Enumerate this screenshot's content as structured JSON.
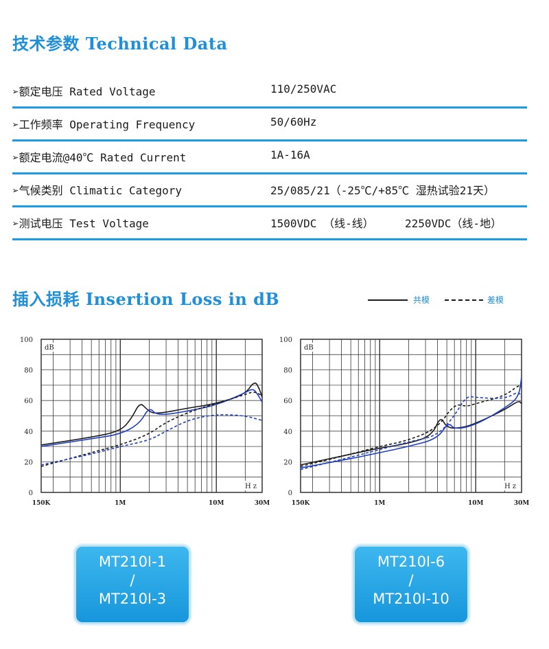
{
  "technical": {
    "title": "技术参数 Technical Data",
    "rows": [
      {
        "label": "➢额定电压 Rated Voltage",
        "value": "110/250VAC",
        "value2": ""
      },
      {
        "label": "➢工作频率 Operating Frequency",
        "value": "50/60Hz",
        "value2": ""
      },
      {
        "label": "➢额定电流@40℃ Rated Current",
        "value": "1A-16A",
        "value2": ""
      },
      {
        "label": "➢气候类别 Climatic Category",
        "value": "25/085/21（-25℃/+85℃ 湿热试验21天）",
        "value2": ""
      },
      {
        "label": "➢测试电压 Test Voltage",
        "value": "1500VDC （线-线）",
        "value2": "2250VDC（线-地）"
      }
    ]
  },
  "insertion": {
    "title": "插入损耗 Insertion Loss in dB",
    "legend_common": "共模",
    "legend_diff": "差模"
  },
  "colors": {
    "accent": "#1b9be6",
    "black_series": "#1a1a1a",
    "blue_series": "#1f3fc0"
  },
  "chart_data": [
    {
      "type": "line",
      "ylabel": "dB",
      "xlabel": "Hz",
      "ylim": [
        0,
        100
      ],
      "x_scale": "log",
      "x_ticks": [
        {
          "label": "150K",
          "hz": 150000
        },
        {
          "label": "1M",
          "hz": 1000000
        },
        {
          "label": "10M",
          "hz": 10000000
        },
        {
          "label": "30M",
          "hz": 30000000
        }
      ],
      "y_ticks": [
        0,
        20,
        40,
        60,
        80,
        100
      ],
      "series": [
        {
          "style": "solid",
          "color": "black",
          "points": [
            [
              150000,
              31
            ],
            [
              500000,
              36
            ],
            [
              1000000,
              40
            ],
            [
              1300000,
              48
            ],
            [
              1600000,
              59
            ],
            [
              1900000,
              54
            ],
            [
              2300000,
              51
            ],
            [
              5000000,
              55
            ],
            [
              10000000,
              58
            ],
            [
              20000000,
              64
            ],
            [
              25000000,
              73
            ],
            [
              28000000,
              68
            ],
            [
              30000000,
              62
            ]
          ]
        },
        {
          "style": "solid",
          "color": "blue",
          "points": [
            [
              150000,
              30
            ],
            [
              500000,
              35
            ],
            [
              1000000,
              38
            ],
            [
              1600000,
              45
            ],
            [
              2000000,
              56
            ],
            [
              2400000,
              50
            ],
            [
              5000000,
              53
            ],
            [
              10000000,
              57
            ],
            [
              20000000,
              65
            ],
            [
              24000000,
              68
            ],
            [
              27000000,
              64
            ],
            [
              30000000,
              59
            ]
          ]
        },
        {
          "style": "dashed",
          "color": "black",
          "points": [
            [
              150000,
              17
            ],
            [
              500000,
              26
            ],
            [
              1000000,
              31
            ],
            [
              2000000,
              38
            ],
            [
              3000000,
              46
            ],
            [
              6000000,
              54
            ],
            [
              10000000,
              58
            ],
            [
              20000000,
              64
            ],
            [
              25000000,
              66
            ],
            [
              30000000,
              63
            ]
          ]
        },
        {
          "style": "dashed",
          "color": "blue",
          "points": [
            [
              150000,
              18
            ],
            [
              500000,
              25
            ],
            [
              1000000,
              30
            ],
            [
              2000000,
              34
            ],
            [
              3000000,
              40
            ],
            [
              5000000,
              47
            ],
            [
              8000000,
              50
            ],
            [
              12000000,
              51
            ],
            [
              20000000,
              50
            ],
            [
              30000000,
              47
            ]
          ]
        }
      ]
    },
    {
      "type": "line",
      "ylabel": "dB",
      "xlabel": "Hz",
      "ylim": [
        0,
        100
      ],
      "x_scale": "log",
      "x_ticks": [
        {
          "label": "150K",
          "hz": 150000
        },
        {
          "label": "1M",
          "hz": 1000000
        },
        {
          "label": "10M",
          "hz": 10000000
        },
        {
          "label": "30M",
          "hz": 30000000
        }
      ],
      "y_ticks": [
        0,
        20,
        40,
        60,
        80,
        100
      ],
      "series": [
        {
          "style": "solid",
          "color": "black",
          "points": [
            [
              150000,
              18
            ],
            [
              500000,
              25
            ],
            [
              1000000,
              29
            ],
            [
              2000000,
              32
            ],
            [
              3500000,
              37
            ],
            [
              4300000,
              50
            ],
            [
              5000000,
              42
            ],
            [
              7000000,
              42
            ],
            [
              10000000,
              45
            ],
            [
              20000000,
              54
            ],
            [
              28000000,
              60
            ],
            [
              30000000,
              58
            ]
          ]
        },
        {
          "style": "solid",
          "color": "blue",
          "points": [
            [
              150000,
              16
            ],
            [
              500000,
              22
            ],
            [
              1000000,
              26
            ],
            [
              2000000,
              30
            ],
            [
              4000000,
              35
            ],
            [
              5200000,
              46
            ],
            [
              6000000,
              41
            ],
            [
              10000000,
              44
            ],
            [
              20000000,
              55
            ],
            [
              28000000,
              62
            ],
            [
              30000000,
              75
            ]
          ]
        },
        {
          "style": "dashed",
          "color": "black",
          "points": [
            [
              150000,
              17
            ],
            [
              500000,
              25
            ],
            [
              1000000,
              30
            ],
            [
              2000000,
              34
            ],
            [
              4000000,
              42
            ],
            [
              6000000,
              58
            ],
            [
              8000000,
              56
            ],
            [
              10000000,
              58
            ],
            [
              20000000,
              63
            ],
            [
              28000000,
              70
            ],
            [
              30000000,
              69
            ]
          ]
        },
        {
          "style": "dashed",
          "color": "blue",
          "points": [
            [
              150000,
              15
            ],
            [
              500000,
              23
            ],
            [
              1000000,
              28
            ],
            [
              2000000,
              33
            ],
            [
              4000000,
              37
            ],
            [
              6000000,
              50
            ],
            [
              8000000,
              63
            ],
            [
              10000000,
              62
            ],
            [
              20000000,
              61
            ],
            [
              28000000,
              66
            ],
            [
              30000000,
              62
            ]
          ]
        }
      ]
    }
  ],
  "badges": [
    {
      "line1": "MT210I-1",
      "line2": "/",
      "line3": "MT210I-3"
    },
    {
      "line1": "MT210I-6",
      "line2": "/",
      "line3": "MT210I-10"
    }
  ]
}
